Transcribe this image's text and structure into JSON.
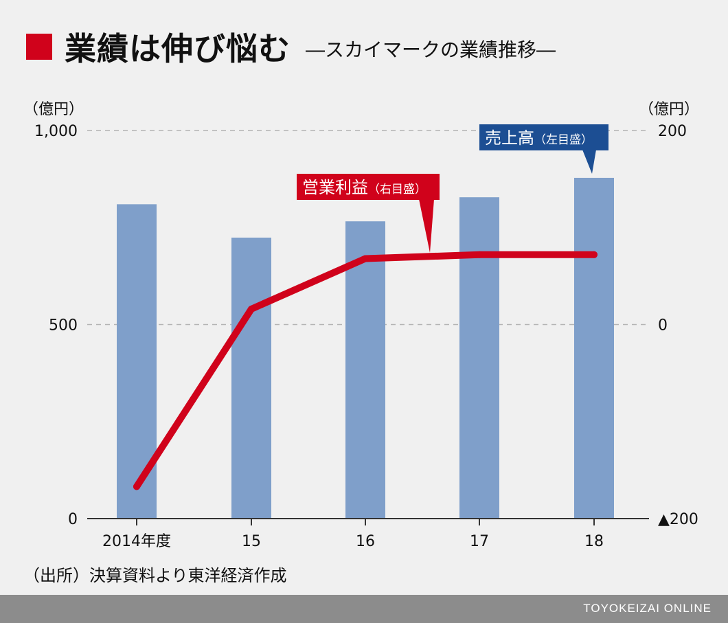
{
  "header": {
    "title": "業績は伸び悩む",
    "subtitle": "―スカイマークの業績推移―"
  },
  "source": "（出所）決算資料より東洋経済作成",
  "footer": {
    "brand": "TOYOKEIZAI ONLINE"
  },
  "colors": {
    "bar": "#7f9fca",
    "line": "#d0021b",
    "accent_red": "#d0021b",
    "callout_blue": "#1c4e93"
  },
  "chart_data": {
    "type": "bar+line",
    "categories": [
      "2014年度",
      "15",
      "16",
      "17",
      "18"
    ],
    "left_axis": {
      "unit": "（億円）",
      "ylim": [
        0,
        1000
      ],
      "ticks": [
        "0",
        "500",
        "1,000"
      ]
    },
    "right_axis": {
      "unit": "（億円）",
      "ylim": [
        -200,
        200
      ],
      "ticks": [
        "▲200",
        "0",
        "200"
      ]
    },
    "series": [
      {
        "name": "売上高",
        "axis_note": "（左目盛）",
        "type": "bar",
        "axis": "left",
        "values": [
          810,
          724,
          766,
          828,
          878
        ]
      },
      {
        "name": "営業利益",
        "axis_note": "（右目盛）",
        "type": "line",
        "axis": "right",
        "values": [
          -167,
          16,
          68,
          72,
          72
        ]
      }
    ],
    "grid": "dashed at 500 and 1000"
  }
}
